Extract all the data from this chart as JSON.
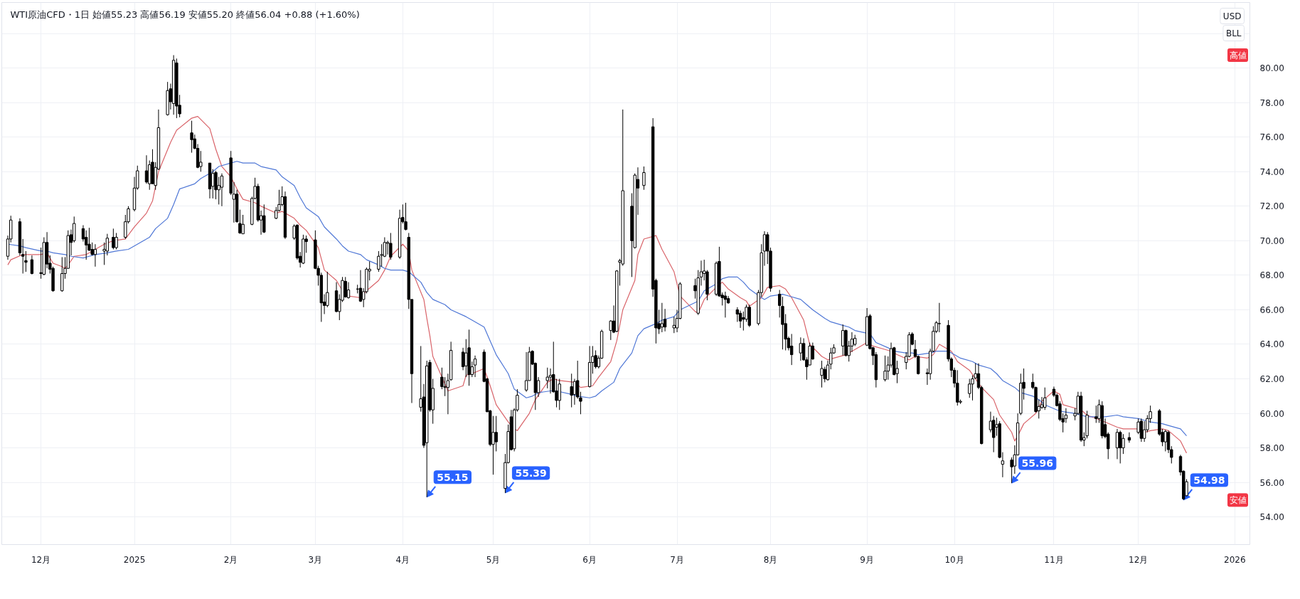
{
  "chart_data": {
    "type": "candlestick",
    "title": "WTI原油CFD・1日 始値55.23 高値56.19 安値55.20 終値56.04 +0.88 (+1.60%)",
    "color": "#000000",
    "x": [
      "2024-11-21",
      "2024-11-22",
      "2024-11-25",
      "2024-11-26",
      "2024-11-27",
      "2024-11-29",
      "2024-12-02",
      "2024-12-03",
      "2024-12-04",
      "2024-12-05",
      "2024-12-06",
      "2024-12-09",
      "2024-12-10",
      "2024-12-11",
      "2024-12-12",
      "2024-12-13",
      "2024-12-16",
      "2024-12-17",
      "2024-12-18",
      "2024-12-19",
      "2024-12-20",
      "2024-12-23",
      "2024-12-24",
      "2024-12-26",
      "2024-12-27",
      "2024-12-30",
      "2024-12-31",
      "2025-01-02",
      "2025-01-03",
      "2025-01-06",
      "2025-01-07",
      "2025-01-08",
      "2025-01-09",
      "2025-01-10",
      "2025-01-13",
      "2025-01-14",
      "2025-01-15",
      "2025-01-16",
      "2025-01-17",
      "2025-01-21",
      "2025-01-22",
      "2025-01-23",
      "2025-01-24",
      "2025-01-27",
      "2025-01-28",
      "2025-01-29",
      "2025-01-30",
      "2025-01-31",
      "2025-02-03",
      "2025-02-04",
      "2025-02-05",
      "2025-02-06",
      "2025-02-07",
      "2025-02-10",
      "2025-02-11",
      "2025-02-12",
      "2025-02-13",
      "2025-02-14",
      "2025-02-18",
      "2025-02-19",
      "2025-02-20",
      "2025-02-21",
      "2025-02-24",
      "2025-02-25",
      "2025-02-26",
      "2025-02-27",
      "2025-02-28",
      "2025-03-03",
      "2025-03-04",
      "2025-03-05",
      "2025-03-06",
      "2025-03-07",
      "2025-03-10",
      "2025-03-11",
      "2025-03-12",
      "2025-03-13",
      "2025-03-14",
      "2025-03-17",
      "2025-03-18",
      "2025-03-19",
      "2025-03-20",
      "2025-03-21",
      "2025-03-24",
      "2025-03-25",
      "2025-03-26",
      "2025-03-27",
      "2025-03-28",
      "2025-03-31",
      "2025-04-01",
      "2025-04-02",
      "2025-04-03",
      "2025-04-04",
      "2025-04-07",
      "2025-04-08",
      "2025-04-09",
      "2025-04-10",
      "2025-04-11",
      "2025-04-14",
      "2025-04-15",
      "2025-04-16",
      "2025-04-17",
      "2025-04-21",
      "2025-04-22",
      "2025-04-23",
      "2025-04-24",
      "2025-04-25",
      "2025-04-28",
      "2025-04-29",
      "2025-04-30",
      "2025-05-01",
      "2025-05-02",
      "2025-05-05",
      "2025-05-06",
      "2025-05-07",
      "2025-05-08",
      "2025-05-09",
      "2025-05-12",
      "2025-05-13",
      "2025-05-14",
      "2025-05-15",
      "2025-05-16",
      "2025-05-19",
      "2025-05-20",
      "2025-05-21",
      "2025-05-22",
      "2025-05-23",
      "2025-05-27",
      "2025-05-28",
      "2025-05-29",
      "2025-05-30",
      "2025-06-02",
      "2025-06-03",
      "2025-06-04",
      "2025-06-05",
      "2025-06-06",
      "2025-06-09",
      "2025-06-10",
      "2025-06-11",
      "2025-06-12",
      "2025-06-13",
      "2025-06-16",
      "2025-06-17",
      "2025-06-18",
      "2025-06-20",
      "2025-06-23",
      "2025-06-24",
      "2025-06-25",
      "2025-06-26",
      "2025-06-27",
      "2025-06-30",
      "2025-07-01",
      "2025-07-02",
      "2025-07-07",
      "2025-07-08",
      "2025-07-09",
      "2025-07-10",
      "2025-07-11",
      "2025-07-14",
      "2025-07-15",
      "2025-07-16",
      "2025-07-17",
      "2025-07-18",
      "2025-07-21",
      "2025-07-22",
      "2025-07-23",
      "2025-07-24",
      "2025-07-25",
      "2025-07-28",
      "2025-07-29",
      "2025-07-30",
      "2025-07-31",
      "2025-08-01",
      "2025-08-04",
      "2025-08-05",
      "2025-08-06",
      "2025-08-07",
      "2025-08-08",
      "2025-08-11",
      "2025-08-12",
      "2025-08-13",
      "2025-08-14",
      "2025-08-15",
      "2025-08-18",
      "2025-08-19",
      "2025-08-20",
      "2025-08-21",
      "2025-08-22",
      "2025-08-25",
      "2025-08-26",
      "2025-08-27",
      "2025-08-28",
      "2025-08-29",
      "2025-09-02",
      "2025-09-03",
      "2025-09-04",
      "2025-09-05",
      "2025-09-08",
      "2025-09-09",
      "2025-09-10",
      "2025-09-11",
      "2025-09-12",
      "2025-09-15",
      "2025-09-16",
      "2025-09-17",
      "2025-09-18",
      "2025-09-19",
      "2025-09-22",
      "2025-09-23",
      "2025-09-24",
      "2025-09-25",
      "2025-09-26",
      "2025-09-29",
      "2025-09-30",
      "2025-10-01",
      "2025-10-02",
      "2025-10-03",
      "2025-10-06",
      "2025-10-07",
      "2025-10-08",
      "2025-10-09",
      "2025-10-10",
      "2025-10-13",
      "2025-10-14",
      "2025-10-15",
      "2025-10-16",
      "2025-10-17",
      "2025-10-20",
      "2025-10-21",
      "2025-10-22",
      "2025-10-23",
      "2025-10-24",
      "2025-10-27",
      "2025-10-28",
      "2025-10-29",
      "2025-10-30",
      "2025-10-31",
      "2025-11-03",
      "2025-11-04",
      "2025-11-05",
      "2025-11-06",
      "2025-11-07",
      "2025-11-10",
      "2025-11-11",
      "2025-11-12",
      "2025-11-13",
      "2025-11-14",
      "2025-11-17",
      "2025-11-18",
      "2025-11-19",
      "2025-11-20",
      "2025-11-21",
      "2025-11-24",
      "2025-11-25",
      "2025-11-26",
      "2025-11-28",
      "2025-12-01",
      "2025-12-02",
      "2025-12-03",
      "2025-12-04",
      "2025-12-05",
      "2025-12-08",
      "2025-12-09",
      "2025-12-10",
      "2025-12-11",
      "2025-12-12",
      "2025-12-15",
      "2025-12-16",
      "2025-12-17"
    ],
    "ohlc": [
      [
        69.1,
        70.3,
        68.9,
        70.1
      ],
      [
        70.1,
        71.45,
        69.9,
        71.2
      ],
      [
        71.1,
        71.3,
        69.15,
        69.3
      ],
      [
        69.2,
        70.1,
        68.1,
        69.1
      ],
      [
        68.85,
        69.4,
        68.2,
        68.75
      ],
      [
        68.9,
        69.15,
        68.05,
        68.1
      ],
      [
        68.15,
        69.6,
        67.8,
        68.1
      ],
      [
        68.05,
        70.2,
        68.0,
        69.9
      ],
      [
        69.9,
        70.5,
        68.4,
        68.65
      ],
      [
        68.7,
        69.15,
        68.1,
        68.35
      ],
      [
        68.4,
        68.5,
        67.05,
        67.1
      ],
      [
        67.1,
        69.05,
        67.05,
        68.1
      ],
      [
        68.1,
        69.05,
        67.8,
        68.4
      ],
      [
        68.4,
        70.6,
        68.4,
        70.3
      ],
      [
        70.35,
        70.65,
        69.15,
        69.9
      ],
      [
        70.0,
        71.4,
        69.9,
        71.0
      ],
      [
        70.7,
        70.9,
        69.95,
        70.1
      ],
      [
        70.2,
        70.6,
        68.9,
        69.75
      ],
      [
        69.8,
        70.75,
        69.4,
        69.45
      ],
      [
        69.5,
        69.9,
        69.15,
        69.2
      ],
      [
        69.2,
        69.8,
        68.5,
        69.5
      ],
      [
        69.4,
        69.9,
        68.6,
        69.5
      ],
      [
        69.4,
        70.4,
        69.15,
        70.15
      ],
      [
        70.2,
        70.7,
        69.5,
        69.6
      ],
      [
        69.6,
        70.45,
        69.5,
        70.2
      ],
      [
        70.2,
        71.5,
        70.1,
        71.1
      ],
      [
        71.1,
        72.0,
        71.0,
        71.85
      ],
      [
        71.8,
        73.7,
        71.7,
        73.05
      ],
      [
        73.05,
        74.35,
        72.95,
        74.05
      ],
      [
        74.05,
        74.95,
        73.3,
        73.4
      ],
      [
        73.3,
        74.65,
        72.95,
        74.4
      ],
      [
        74.55,
        75.3,
        73.3,
        73.3
      ],
      [
        73.2,
        74.55,
        72.95,
        74.25
      ],
      [
        74.15,
        77.6,
        74.1,
        76.55
      ],
      [
        77.3,
        79.2,
        77.25,
        78.7
      ],
      [
        78.8,
        79.1,
        77.6,
        78.05
      ],
      [
        77.95,
        80.75,
        77.3,
        80.45
      ],
      [
        80.3,
        80.55,
        77.1,
        77.8
      ],
      [
        77.85,
        78.45,
        77.15,
        77.35
      ],
      [
        76.25,
        76.95,
        75.1,
        75.85
      ],
      [
        75.9,
        76.15,
        75.3,
        75.35
      ],
      [
        75.35,
        75.6,
        74.2,
        74.25
      ],
      [
        74.3,
        75.2,
        74.0,
        74.55
      ],
      [
        74.5,
        74.5,
        72.45,
        73.0
      ],
      [
        73.15,
        74.15,
        72.45,
        73.9
      ],
      [
        73.95,
        74.05,
        72.4,
        72.95
      ],
      [
        72.95,
        73.7,
        72.1,
        73.2
      ],
      [
        73.1,
        73.9,
        72.0,
        73.75
      ],
      [
        74.8,
        75.2,
        72.65,
        72.75
      ],
      [
        72.4,
        73.4,
        71.05,
        72.7
      ],
      [
        72.7,
        72.95,
        71.05,
        71.1
      ],
      [
        71.0,
        71.8,
        70.4,
        70.45
      ],
      [
        70.4,
        71.5,
        70.4,
        70.95
      ],
      [
        70.95,
        72.55,
        70.9,
        72.45
      ],
      [
        72.45,
        73.65,
        72.4,
        73.15
      ],
      [
        73.15,
        73.3,
        71.1,
        71.2
      ],
      [
        71.2,
        71.75,
        70.35,
        71.45
      ],
      [
        71.45,
        72.1,
        70.45,
        70.5
      ],
      [
        71.3,
        71.95,
        71.25,
        71.75
      ],
      [
        71.75,
        72.95,
        71.7,
        72.1
      ],
      [
        72.1,
        73.15,
        72.0,
        72.55
      ],
      [
        72.55,
        72.85,
        70.1,
        70.2
      ],
      [
        70.15,
        70.95,
        70.05,
        70.85
      ],
      [
        70.9,
        70.95,
        68.9,
        69.0
      ],
      [
        69.1,
        69.35,
        68.45,
        68.75
      ],
      [
        68.7,
        70.35,
        68.65,
        70.1
      ],
      [
        70.1,
        70.3,
        69.3,
        69.95
      ],
      [
        70.05,
        70.6,
        68.35,
        68.4
      ],
      [
        68.4,
        68.55,
        67.4,
        68.0
      ],
      [
        68.0,
        68.15,
        65.3,
        66.4
      ],
      [
        66.45,
        66.9,
        65.75,
        66.25
      ],
      [
        66.25,
        68.2,
        66.15,
        67.0
      ],
      [
        67.1,
        67.6,
        65.85,
        65.9
      ],
      [
        65.9,
        66.9,
        65.4,
        66.6
      ],
      [
        66.55,
        67.9,
        66.45,
        67.7
      ],
      [
        67.65,
        67.9,
        66.7,
        66.75
      ],
      [
        66.7,
        67.6,
        66.65,
        67.15
      ],
      [
        67.2,
        67.45,
        66.95,
        67.2
      ],
      [
        67.25,
        68.3,
        66.45,
        66.5
      ],
      [
        66.6,
        67.25,
        66.15,
        67.05
      ],
      [
        67.05,
        68.45,
        66.95,
        68.35
      ],
      [
        68.25,
        68.8,
        67.7,
        68.35
      ],
      [
        68.35,
        69.4,
        68.2,
        69.1
      ],
      [
        69.15,
        69.8,
        68.5,
        69.2
      ],
      [
        69.1,
        70.2,
        69.05,
        69.9
      ],
      [
        69.85,
        70.0,
        69.2,
        69.9
      ],
      [
        69.85,
        70.45,
        68.9,
        69.05
      ],
      [
        69.05,
        71.8,
        68.95,
        71.3
      ],
      [
        71.35,
        72.1,
        71.0,
        71.1
      ],
      [
        71.1,
        72.2,
        70.6,
        70.65
      ],
      [
        70.2,
        70.45,
        66.05,
        66.6
      ],
      [
        66.6,
        66.6,
        60.6,
        62.3
      ],
      [
        60.35,
        63.9,
        60.1,
        60.85
      ],
      [
        60.95,
        61.7,
        58.0,
        58.15
      ],
      [
        58.3,
        63.05,
        55.15,
        62.75
      ],
      [
        62.95,
        63.1,
        60.1,
        60.2
      ],
      [
        60.2,
        62.0,
        59.4,
        61.45
      ],
      [
        62.1,
        62.65,
        61.4,
        61.55
      ],
      [
        61.5,
        62.1,
        61.0,
        61.55
      ],
      [
        61.5,
        62.3,
        59.95,
        61.9
      ],
      [
        61.95,
        64.15,
        61.9,
        63.65
      ],
      [
        63.55,
        63.8,
        62.5,
        62.7
      ],
      [
        62.75,
        64.3,
        62.1,
        63.5
      ],
      [
        63.8,
        64.85,
        61.6,
        62.25
      ],
      [
        62.25,
        63.0,
        62.1,
        62.7
      ],
      [
        62.8,
        63.35,
        62.1,
        63.15
      ],
      [
        63.55,
        63.7,
        61.8,
        61.85
      ],
      [
        62.0,
        62.05,
        60.05,
        60.1
      ],
      [
        60.15,
        60.2,
        58.1,
        58.2
      ],
      [
        58.2,
        59.85,
        56.45,
        58.9
      ],
      [
        58.9,
        59.85,
        57.8,
        58.35
      ],
      [
        55.65,
        57.65,
        55.39,
        57.15
      ],
      [
        57.15,
        59.35,
        57.1,
        58.95
      ],
      [
        59.8,
        60.2,
        57.85,
        57.9
      ],
      [
        57.95,
        60.3,
        57.8,
        60.2
      ],
      [
        60.2,
        61.4,
        60.1,
        61.05
      ],
      [
        61.35,
        63.55,
        61.25,
        61.9
      ],
      [
        61.9,
        63.85,
        61.9,
        63.55
      ],
      [
        63.6,
        63.65,
        62.8,
        62.85
      ],
      [
        62.9,
        62.95,
        60.2,
        61.2
      ],
      [
        61.2,
        62.1,
        60.95,
        61.9
      ],
      [
        61.9,
        62.65,
        61.45,
        62.1
      ],
      [
        62.1,
        62.6,
        61.15,
        62.2
      ],
      [
        62.25,
        64.15,
        61.2,
        61.25
      ],
      [
        61.3,
        62.0,
        60.35,
        60.75
      ],
      [
        60.75,
        62.0,
        60.2,
        61.7
      ],
      [
        61.55,
        62.3,
        60.35,
        61.05
      ],
      [
        61.1,
        62.0,
        60.5,
        61.85
      ],
      [
        61.9,
        63.05,
        60.85,
        60.95
      ],
      [
        60.9,
        61.25,
        59.95,
        60.7
      ],
      [
        61.55,
        63.9,
        61.5,
        62.95
      ],
      [
        62.95,
        63.9,
        62.3,
        63.3
      ],
      [
        63.35,
        63.65,
        62.6,
        62.7
      ],
      [
        62.7,
        63.35,
        62.6,
        63.2
      ],
      [
        63.2,
        64.85,
        63.15,
        64.75
      ],
      [
        64.8,
        65.4,
        64.25,
        65.35
      ],
      [
        65.35,
        66.25,
        64.65,
        64.7
      ],
      [
        64.75,
        68.3,
        64.7,
        68.25
      ],
      [
        68.75,
        68.95,
        67.4,
        68.85
      ],
      [
        68.65,
        77.6,
        68.55,
        72.9
      ],
      [
        72.0,
        72.75,
        67.9,
        70.0
      ],
      [
        69.6,
        73.9,
        69.55,
        73.8
      ],
      [
        73.55,
        74.25,
        71.5,
        73.05
      ],
      [
        73.2,
        74.3,
        72.95,
        73.95
      ],
      [
        76.6,
        77.1,
        66.75,
        67.2
      ],
      [
        67.7,
        67.8,
        64.05,
        64.95
      ],
      [
        65.2,
        66.0,
        64.6,
        64.9
      ],
      [
        65.0,
        66.4,
        64.7,
        65.2
      ],
      [
        65.45,
        66.05,
        64.75,
        65.0
      ],
      [
        64.95,
        65.6,
        64.65,
        65.1
      ],
      [
        64.95,
        66.0,
        64.7,
        65.5
      ],
      [
        65.5,
        67.6,
        65.45,
        67.5
      ],
      [
        67.4,
        67.8,
        66.65,
        67.1
      ],
      [
        65.8,
        68.3,
        65.7,
        67.85
      ],
      [
        67.9,
        68.85,
        67.4,
        68.2
      ],
      [
        68.1,
        68.9,
        67.7,
        68.25
      ],
      [
        68.2,
        68.3,
        66.55,
        66.9
      ],
      [
        66.9,
        68.8,
        66.8,
        68.7
      ],
      [
        68.8,
        69.65,
        66.75,
        66.8
      ],
      [
        66.85,
        67.0,
        66.25,
        66.7
      ],
      [
        66.8,
        67.05,
        65.55,
        66.6
      ],
      [
        66.65,
        66.8,
        66.35,
        66.4
      ],
      [
        66.0,
        66.15,
        65.3,
        65.75
      ],
      [
        65.8,
        65.95,
        64.95,
        65.35
      ],
      [
        65.55,
        65.9,
        64.8,
        65.45
      ],
      [
        65.45,
        66.3,
        65.3,
        66.15
      ],
      [
        66.15,
        66.3,
        65.0,
        65.1
      ],
      [
        65.2,
        67.15,
        65.1,
        67.0
      ],
      [
        67.0,
        69.8,
        66.75,
        69.3
      ],
      [
        69.4,
        70.55,
        68.55,
        70.35
      ],
      [
        70.35,
        70.5,
        68.65,
        69.4
      ],
      [
        69.4,
        69.6,
        67.05,
        67.25
      ],
      [
        66.9,
        67.15,
        65.55,
        66.25
      ],
      [
        66.2,
        66.75,
        63.7,
        65.15
      ],
      [
        65.2,
        65.75,
        63.65,
        64.3
      ],
      [
        64.35,
        64.45,
        63.65,
        63.8
      ],
      [
        63.9,
        64.6,
        62.8,
        63.4
      ],
      [
        63.5,
        64.4,
        63.05,
        64.05
      ],
      [
        64.05,
        64.35,
        63.05,
        63.1
      ],
      [
        63.1,
        63.25,
        61.95,
        62.7
      ],
      [
        62.8,
        64.1,
        62.8,
        63.9
      ],
      [
        63.9,
        64.1,
        63.1,
        63.15
      ],
      [
        62.2,
        63.05,
        61.5,
        62.6
      ],
      [
        62.55,
        62.7,
        61.8,
        62.0
      ],
      [
        61.95,
        63.05,
        61.9,
        62.8
      ],
      [
        62.85,
        63.8,
        62.55,
        63.5
      ],
      [
        63.5,
        64.0,
        63.45,
        63.8
      ],
      [
        63.9,
        65.15,
        63.35,
        64.8
      ],
      [
        64.8,
        64.85,
        63.3,
        63.35
      ],
      [
        63.35,
        64.2,
        63.0,
        63.9
      ],
      [
        63.9,
        64.7,
        63.55,
        64.3
      ],
      [
        64.0,
        64.55,
        63.9,
        64.35
      ],
      [
        63.95,
        66.1,
        63.9,
        65.6
      ],
      [
        65.65,
        65.75,
        63.7,
        63.75
      ],
      [
        63.8,
        63.85,
        62.8,
        63.35
      ],
      [
        63.4,
        63.55,
        61.5,
        61.95
      ],
      [
        61.95,
        63.35,
        61.85,
        62.45
      ],
      [
        62.45,
        63.3,
        61.95,
        62.8
      ],
      [
        62.8,
        64.1,
        62.65,
        63.75
      ],
      [
        63.8,
        63.85,
        62.2,
        62.25
      ],
      [
        62.3,
        63.05,
        61.75,
        62.6
      ],
      [
        62.95,
        63.55,
        62.55,
        63.3
      ],
      [
        63.3,
        64.7,
        63.25,
        64.55
      ],
      [
        64.6,
        64.7,
        63.95,
        64.0
      ],
      [
        63.7,
        64.25,
        63.2,
        63.3
      ],
      [
        63.3,
        63.35,
        62.25,
        62.3
      ],
      [
        62.35,
        62.6,
        61.65,
        62.3
      ],
      [
        62.3,
        63.75,
        61.95,
        63.6
      ],
      [
        63.6,
        65.05,
        63.55,
        64.75
      ],
      [
        64.75,
        65.35,
        64.65,
        65.25
      ],
      [
        65.2,
        66.4,
        64.7,
        65.2
      ],
      [
        65.1,
        65.4,
        63.0,
        63.15
      ],
      [
        63.15,
        63.25,
        62.1,
        62.5
      ],
      [
        62.5,
        62.65,
        61.5,
        61.75
      ],
      [
        61.75,
        62.5,
        60.45,
        60.65
      ],
      [
        60.65,
        60.8,
        60.55,
        60.7
      ],
      [
        61.15,
        62.0,
        60.9,
        61.7
      ],
      [
        61.7,
        62.2,
        60.75,
        62.0
      ],
      [
        62.05,
        62.9,
        62.0,
        62.3
      ],
      [
        62.3,
        62.9,
        61.4,
        61.5
      ],
      [
        61.5,
        61.6,
        58.2,
        58.25
      ],
      [
        59.05,
        60.1,
        58.9,
        59.55
      ],
      [
        59.6,
        59.85,
        57.75,
        58.6
      ],
      [
        59.2,
        59.75,
        58.7,
        59.35
      ],
      [
        59.4,
        59.55,
        57.4,
        57.45
      ],
      [
        57.05,
        57.75,
        56.3,
        57.25
      ],
      [
        57.3,
        57.45,
        55.96,
        56.9
      ],
      [
        56.95,
        58.15,
        56.5,
        57.6
      ],
      [
        57.6,
        60.0,
        57.55,
        59.45
      ],
      [
        60.0,
        62.3,
        59.9,
        61.75
      ],
      [
        61.8,
        62.6,
        60.8,
        61.45
      ],
      [
        61.8,
        62.3,
        61.4,
        61.5
      ],
      [
        61.5,
        61.55,
        60.05,
        60.1
      ],
      [
        60.15,
        60.8,
        59.7,
        60.4
      ],
      [
        60.35,
        60.95,
        60.25,
        60.5
      ],
      [
        60.35,
        61.5,
        60.2,
        60.9
      ],
      [
        61.4,
        61.55,
        60.95,
        61.05
      ],
      [
        61.05,
        61.15,
        60.4,
        60.45
      ],
      [
        60.55,
        60.7,
        59.55,
        59.65
      ],
      [
        59.7,
        60.0,
        58.9,
        59.5
      ],
      [
        59.7,
        60.3,
        59.45,
        59.9
      ],
      [
        59.85,
        60.3,
        59.6,
        60.0
      ],
      [
        60.0,
        61.25,
        59.9,
        61.0
      ],
      [
        61.0,
        61.25,
        58.35,
        58.45
      ],
      [
        58.45,
        58.9,
        58.1,
        58.6
      ],
      [
        58.7,
        60.15,
        58.55,
        59.9
      ],
      [
        59.8,
        60.45,
        59.45,
        59.7
      ],
      [
        59.7,
        60.8,
        59.45,
        60.5
      ],
      [
        60.45,
        60.7,
        58.55,
        58.7
      ],
      [
        59.35,
        59.7,
        58.55,
        58.65
      ],
      [
        58.8,
        58.9,
        57.35,
        57.95
      ],
      [
        58.0,
        59.1,
        57.35,
        58.9
      ],
      [
        58.9,
        59.0,
        57.1,
        58.0
      ],
      [
        58.0,
        58.8,
        57.65,
        58.55
      ],
      [
        58.6,
        58.9,
        58.3,
        58.45
      ],
      [
        58.9,
        59.7,
        58.8,
        59.5
      ],
      [
        59.55,
        59.7,
        58.35,
        58.55
      ],
      [
        58.55,
        59.55,
        58.35,
        59.05
      ],
      [
        59.05,
        59.9,
        58.9,
        59.7
      ],
      [
        59.7,
        60.45,
        59.45,
        60.1
      ],
      [
        60.15,
        60.25,
        58.7,
        58.8
      ],
      [
        58.9,
        59.1,
        58.1,
        58.35
      ],
      [
        58.35,
        59.05,
        57.8,
        58.95
      ],
      [
        58.9,
        59.0,
        57.7,
        57.9
      ],
      [
        57.9,
        58.1,
        57.1,
        57.45
      ],
      [
        57.5,
        57.6,
        56.4,
        56.6
      ],
      [
        56.65,
        56.7,
        54.98,
        55.05
      ],
      [
        55.23,
        56.19,
        55.2,
        56.04
      ]
    ],
    "series": [
      {
        "type": "line",
        "color": "#d9646a",
        "x": [
          "2024-11-21",
          "2024-11-22",
          "2024-11-26",
          "2024-12-02",
          "2024-12-04",
          "2024-12-06",
          "2024-12-09",
          "2024-12-10",
          "2024-12-11",
          "2024-12-13",
          "2024-12-17",
          "2024-12-19",
          "2024-12-23",
          "2024-12-26",
          "2024-12-30",
          "2025-01-02",
          "2025-01-06",
          "2025-01-08",
          "2025-01-10",
          "2025-01-14",
          "2025-01-16",
          "2025-01-21",
          "2025-01-23",
          "2025-01-27",
          "2025-01-29",
          "2025-01-31",
          "2025-02-03",
          "2025-02-05",
          "2025-02-07",
          "2025-02-11",
          "2025-02-13",
          "2025-02-18",
          "2025-02-20",
          "2025-02-24",
          "2025-02-26",
          "2025-02-28",
          "2025-03-04",
          "2025-03-06",
          "2025-03-10",
          "2025-03-12",
          "2025-03-14",
          "2025-03-18",
          "2025-03-20",
          "2025-03-24",
          "2025-03-26",
          "2025-03-28",
          "2025-04-01",
          "2025-04-03",
          "2025-04-04",
          "2025-04-08",
          "2025-04-09",
          "2025-04-10",
          "2025-04-11",
          "2025-04-14",
          "2025-04-16",
          "2025-04-21",
          "2025-04-22",
          "2025-04-24",
          "2025-04-28",
          "2025-04-30",
          "2025-05-02",
          "2025-05-06",
          "2025-05-08",
          "2025-05-09",
          "2025-05-13",
          "2025-05-15",
          "2025-05-19",
          "2025-05-21",
          "2025-05-23",
          "2025-05-28",
          "2025-05-30",
          "2025-06-03",
          "2025-06-05",
          "2025-06-09",
          "2025-06-11",
          "2025-06-13",
          "2025-06-17",
          "2025-06-18",
          "2025-06-20",
          "2025-06-24",
          "2025-06-26",
          "2025-06-30",
          "2025-07-02",
          "2025-07-07",
          "2025-07-08",
          "2025-07-10",
          "2025-07-14",
          "2025-07-16",
          "2025-07-18",
          "2025-07-22",
          "2025-07-24",
          "2025-07-25",
          "2025-07-29",
          "2025-07-31",
          "2025-08-04",
          "2025-08-06",
          "2025-08-08",
          "2025-08-12",
          "2025-08-14",
          "2025-08-18",
          "2025-08-20",
          "2025-08-22",
          "2025-08-26",
          "2025-08-28",
          "2025-09-02",
          "2025-09-04",
          "2025-09-08",
          "2025-09-10",
          "2025-09-12",
          "2025-09-16",
          "2025-09-18",
          "2025-09-22",
          "2025-09-24",
          "2025-09-26",
          "2025-09-30",
          "2025-10-02",
          "2025-10-06",
          "2025-10-08",
          "2025-10-10",
          "2025-10-14",
          "2025-10-16",
          "2025-10-20",
          "2025-10-21",
          "2025-10-22",
          "2025-10-24",
          "2025-10-28",
          "2025-10-30",
          "2025-11-03",
          "2025-11-05",
          "2025-11-06",
          "2025-11-10",
          "2025-11-12",
          "2025-11-14",
          "2025-11-20",
          "2025-11-24",
          "2025-11-26",
          "2025-12-01",
          "2025-12-03",
          "2025-12-05",
          "2025-12-09",
          "2025-12-11",
          "2025-12-15",
          "2025-12-17"
        ],
        "values": [
          68.6,
          68.9,
          69.2,
          69.2,
          69.3,
          68.7,
          68.5,
          68.4,
          68.6,
          69.1,
          69.2,
          69.4,
          69.8,
          70.0,
          70.1,
          70.8,
          71.6,
          72.3,
          74.0,
          75.7,
          76.4,
          77.1,
          77.2,
          76.5,
          75.3,
          74.3,
          73.7,
          73.0,
          72.4,
          72.2,
          72.0,
          71.6,
          71.7,
          71.3,
          70.9,
          70.6,
          69.6,
          68.3,
          67.7,
          67.1,
          66.8,
          66.7,
          67.1,
          67.7,
          68.3,
          69.1,
          69.8,
          69.4,
          68.3,
          66.6,
          65.5,
          64.5,
          63.3,
          62.1,
          61.3,
          61.6,
          62.2,
          62.3,
          62.6,
          61.6,
          60.5,
          59.5,
          59.1,
          59.0,
          60.0,
          60.8,
          61.8,
          62.0,
          61.9,
          61.8,
          61.5,
          61.6,
          62.1,
          63.0,
          64.2,
          66.0,
          67.7,
          69.2,
          70.1,
          70.3,
          69.5,
          68.2,
          66.8,
          65.9,
          65.8,
          66.6,
          67.3,
          67.6,
          67.2,
          66.7,
          66.5,
          66.2,
          66.7,
          67.3,
          67.4,
          67.2,
          66.7,
          65.4,
          64.0,
          63.3,
          63.1,
          63.2,
          63.4,
          63.6,
          64.1,
          63.9,
          63.7,
          63.6,
          63.4,
          63.1,
          63.3,
          63.2,
          63.4,
          64.0,
          63.6,
          63.0,
          62.5,
          62.0,
          61.5,
          60.8,
          59.9,
          58.9,
          58.4,
          58.7,
          59.4,
          60.0,
          60.7,
          61.3,
          61.1,
          60.5,
          60.3,
          60.2,
          59.9,
          59.5,
          59.2,
          59.1,
          59.1,
          58.9,
          59.0,
          59.1,
          59.0,
          58.4,
          57.7
        ]
      },
      {
        "type": "line",
        "color": "#4f77d6",
        "x": [
          "2024-11-21",
          "2024-11-25",
          "2024-11-27",
          "2024-12-02",
          "2024-12-04",
          "2024-12-06",
          "2024-12-10",
          "2024-12-12",
          "2024-12-16",
          "2024-12-18",
          "2024-12-20",
          "2024-12-24",
          "2024-12-27",
          "2024-12-31",
          "2025-01-03",
          "2025-01-07",
          "2025-01-09",
          "2025-01-13",
          "2025-01-15",
          "2025-01-17",
          "2025-01-22",
          "2025-01-24",
          "2025-01-28",
          "2025-01-30",
          "2025-02-03",
          "2025-02-05",
          "2025-02-07",
          "2025-02-11",
          "2025-02-13",
          "2025-02-18",
          "2025-02-20",
          "2025-02-24",
          "2025-02-26",
          "2025-02-28",
          "2025-03-04",
          "2025-03-06",
          "2025-03-10",
          "2025-03-12",
          "2025-03-14",
          "2025-03-18",
          "2025-03-20",
          "2025-03-24",
          "2025-03-26",
          "2025-03-28",
          "2025-04-01",
          "2025-04-03",
          "2025-04-07",
          "2025-04-09",
          "2025-04-11",
          "2025-04-15",
          "2025-04-17",
          "2025-04-22",
          "2025-04-24",
          "2025-04-28",
          "2025-04-30",
          "2025-05-02",
          "2025-05-06",
          "2025-05-08",
          "2025-05-12",
          "2025-05-14",
          "2025-05-16",
          "2025-05-20",
          "2025-05-22",
          "2025-05-27",
          "2025-05-29",
          "2025-06-02",
          "2025-06-04",
          "2025-06-06",
          "2025-06-10",
          "2025-06-12",
          "2025-06-16",
          "2025-06-18",
          "2025-06-20",
          "2025-06-24",
          "2025-06-26",
          "2025-06-30",
          "2025-07-02",
          "2025-07-08",
          "2025-07-10",
          "2025-07-14",
          "2025-07-16",
          "2025-07-18",
          "2025-07-21",
          "2025-07-23",
          "2025-07-25",
          "2025-07-29",
          "2025-07-30",
          "2025-08-01",
          "2025-08-05",
          "2025-08-07",
          "2025-08-11",
          "2025-08-13",
          "2025-08-15",
          "2025-08-19",
          "2025-08-21",
          "2025-08-25",
          "2025-08-27",
          "2025-08-29",
          "2025-09-03",
          "2025-09-05",
          "2025-09-09",
          "2025-09-11",
          "2025-09-15",
          "2025-09-17",
          "2025-09-19",
          "2025-09-23",
          "2025-09-25",
          "2025-09-29",
          "2025-10-01",
          "2025-10-03",
          "2025-10-07",
          "2025-10-09",
          "2025-10-13",
          "2025-10-15",
          "2025-10-17",
          "2025-10-21",
          "2025-10-23",
          "2025-10-27",
          "2025-10-29",
          "2025-10-31",
          "2025-11-04",
          "2025-11-06",
          "2025-11-10",
          "2025-11-12",
          "2025-11-14",
          "2025-11-20",
          "2025-11-24",
          "2025-11-26",
          "2025-12-01",
          "2025-12-03",
          "2025-12-05",
          "2025-12-09",
          "2025-12-11",
          "2025-12-15",
          "2025-12-17"
        ],
        "values": [
          69.8,
          69.7,
          69.6,
          69.4,
          69.4,
          69.3,
          69.2,
          69.1,
          69.0,
          69.1,
          69.2,
          69.3,
          69.4,
          69.5,
          69.8,
          70.2,
          70.7,
          71.3,
          72.1,
          73.0,
          73.3,
          73.6,
          74.0,
          74.3,
          74.5,
          74.6,
          74.5,
          74.5,
          74.3,
          74.1,
          73.7,
          73.2,
          72.5,
          71.9,
          71.4,
          70.8,
          70.1,
          69.7,
          69.4,
          69.2,
          68.9,
          68.6,
          68.4,
          68.3,
          68.3,
          68.2,
          67.6,
          67.0,
          66.6,
          66.3,
          66.0,
          65.6,
          65.4,
          65.0,
          64.2,
          63.4,
          62.3,
          61.4,
          60.9,
          61.0,
          61.2,
          61.3,
          61.3,
          61.1,
          61.0,
          60.9,
          61.0,
          61.3,
          61.8,
          62.6,
          63.5,
          64.5,
          64.9,
          65.2,
          65.4,
          65.6,
          66.0,
          66.5,
          67.1,
          67.5,
          67.8,
          67.9,
          67.9,
          67.6,
          67.2,
          66.7,
          66.6,
          66.8,
          66.9,
          66.8,
          66.6,
          66.3,
          66.0,
          65.5,
          65.3,
          65.1,
          65.0,
          64.8,
          64.6,
          64.1,
          63.8,
          63.6,
          63.5,
          63.5,
          63.4,
          63.5,
          63.6,
          63.6,
          63.4,
          63.2,
          63.0,
          62.8,
          62.6,
          62.3,
          61.9,
          61.5,
          61.2,
          61.0,
          60.8,
          60.5,
          60.2,
          60.1,
          60.0,
          59.9,
          59.8,
          59.8,
          59.9,
          59.8,
          59.7,
          59.6,
          59.5,
          59.4,
          59.3,
          59.1,
          58.7
        ]
      }
    ],
    "xlim": [
      "2024-11-19",
      "2026-01-07"
    ],
    "xticks": [
      {
        "value": "2024-12-02",
        "label": "12月"
      },
      {
        "value": "2025-01-02",
        "label": "2025"
      },
      {
        "value": "2025-02-03",
        "label": "2月"
      },
      {
        "value": "2025-03-03",
        "label": "3月"
      },
      {
        "value": "2025-04-01",
        "label": "4月"
      },
      {
        "value": "2025-05-01",
        "label": "5月"
      },
      {
        "value": "2025-06-02",
        "label": "6月"
      },
      {
        "value": "2025-07-01",
        "label": "7月"
      },
      {
        "value": "2025-08-01",
        "label": "8月"
      },
      {
        "value": "2025-09-02",
        "label": "9月"
      },
      {
        "value": "2025-10-01",
        "label": "10月"
      },
      {
        "value": "2025-11-03",
        "label": "11月"
      },
      {
        "value": "2025-12-01",
        "label": "12月"
      },
      {
        "value": "2026-01-02",
        "label": "2026"
      }
    ],
    "ylim": [
      52.4,
      83.8
    ],
    "yticks": [
      {
        "value": 54,
        "label": "54.00"
      },
      {
        "value": 56,
        "label": "56.00"
      },
      {
        "value": 58,
        "label": "58.00"
      },
      {
        "value": 60,
        "label": "60.00"
      },
      {
        "value": 62,
        "label": "62.00"
      },
      {
        "value": 64,
        "label": "64.00"
      },
      {
        "value": 66,
        "label": "66.00"
      },
      {
        "value": 68,
        "label": "68.00"
      },
      {
        "value": 70,
        "label": "70.00"
      },
      {
        "value": 72,
        "label": "72.00"
      },
      {
        "value": 74,
        "label": "74.00"
      },
      {
        "value": 76,
        "label": "76.00"
      },
      {
        "value": 78,
        "label": "78.00"
      },
      {
        "value": 80,
        "label": "80.00"
      },
      {
        "value": 82,
        "label": null
      }
    ],
    "grid": true,
    "annotations": [
      {
        "text": "55.15",
        "x": "2025-04-09",
        "y": 55.15
      },
      {
        "text": "55.39",
        "x": "2025-05-05",
        "y": 55.39
      },
      {
        "text": "55.96",
        "x": "2025-10-20",
        "y": 55.96
      },
      {
        "text": "54.98",
        "x": "2025-12-16",
        "y": 54.98
      },
      {
        "text": "高値",
        "y": 80.75
      },
      {
        "text": "安値",
        "y": 54.98
      },
      "USD",
      "BLL"
    ]
  }
}
